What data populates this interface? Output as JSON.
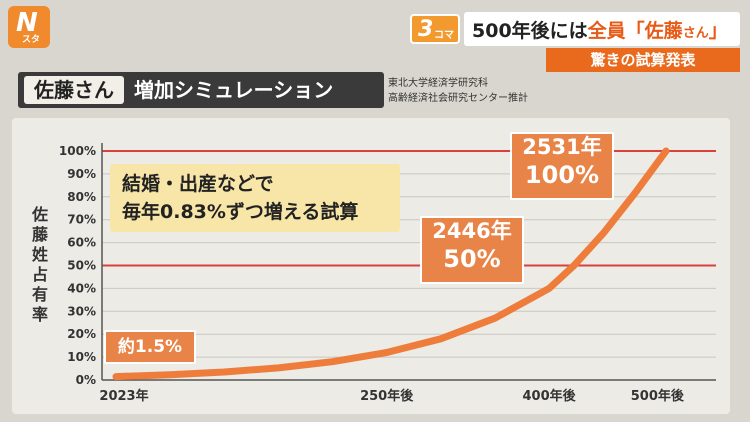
{
  "logo": {
    "mark": "N",
    "sub": "スタ"
  },
  "header": {
    "corner_num": "3",
    "corner_text": "コマ",
    "headline_prefix": "500年後には",
    "headline_highlight": "全員「佐藤",
    "headline_small": "さん",
    "headline_end": "」",
    "subheadline": "驚きの試算発表"
  },
  "title": {
    "sato": "佐藤さん",
    "rest": "増加シミュレーション",
    "source_line1": "東北大学経済学研究科",
    "source_line2": "高齢経済社会研究センター推計"
  },
  "note": {
    "line1": "結婚・出産などで",
    "line2": "毎年0.83%ずつ増える試算"
  },
  "callouts": {
    "start": "約1.5%",
    "mid_year": "2446年",
    "mid_pct": "50%",
    "end_year": "2531年",
    "end_pct": "100%"
  },
  "chart_data": {
    "type": "line",
    "title": "佐藤さん 増加シミュレーション",
    "ylabel": "佐藤姓占有率",
    "xlabel": "",
    "x_tick_labels": [
      "2023年",
      "250年後",
      "400年後",
      "500年後"
    ],
    "x_ticks": [
      2023,
      2273,
      2423,
      2523
    ],
    "y_tick_labels": [
      "0%",
      "10%",
      "20%",
      "30%",
      "40%",
      "50%",
      "60%",
      "70%",
      "80%",
      "90%",
      "100%"
    ],
    "ylim": [
      0,
      100
    ],
    "xlim": [
      2023,
      2531
    ],
    "series": [
      {
        "color": "#ee7d3c",
        "x": [
          2023,
          2073,
          2123,
          2173,
          2223,
          2273,
          2323,
          2373,
          2423,
          2446,
          2473,
          2503,
          2531
        ],
        "y": [
          1.5,
          2.3,
          3.5,
          5.3,
          8.0,
          12.0,
          18.0,
          27.0,
          40.0,
          50.0,
          64.0,
          82.0,
          100.0
        ]
      }
    ],
    "highlight_lines_y": [
      50,
      100
    ],
    "grid": true
  }
}
